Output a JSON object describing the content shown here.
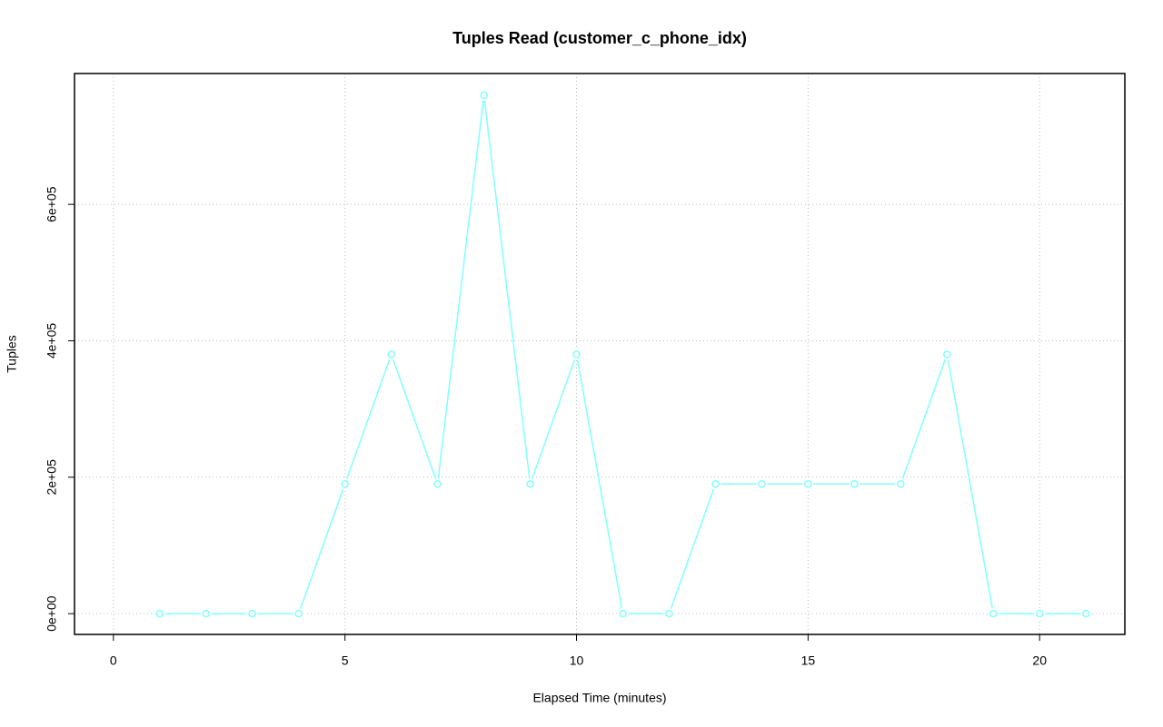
{
  "chart_data": {
    "type": "line",
    "title": "Tuples Read (customer_c_phone_idx)",
    "x_label": "Elapsed Time (minutes)",
    "y_label": "Tuples",
    "x": [
      1,
      2,
      3,
      4,
      5,
      6,
      7,
      8,
      9,
      10,
      11,
      12,
      13,
      14,
      15,
      16,
      17,
      18,
      19,
      20,
      21
    ],
    "series": [
      {
        "name": "Tuples",
        "color": "#80ffff",
        "values": [
          0,
          0,
          0,
          0,
          190000,
          380000,
          190000,
          760000,
          190000,
          380000,
          0,
          0,
          190000,
          190000,
          190000,
          190000,
          190000,
          380000,
          0,
          0,
          0
        ]
      }
    ],
    "xlim": [
      -0.84,
      21.84
    ],
    "xticks": [
      0,
      5,
      10,
      15,
      20
    ],
    "ylim": [
      -30450,
      791800
    ],
    "yticks": [
      {
        "value": 0,
        "label": "0e+00"
      },
      {
        "value": 200000,
        "label": "2e+05"
      },
      {
        "value": 400000,
        "label": "4e+05"
      },
      {
        "value": 600000,
        "label": "6e+05"
      }
    ],
    "grid": true
  }
}
